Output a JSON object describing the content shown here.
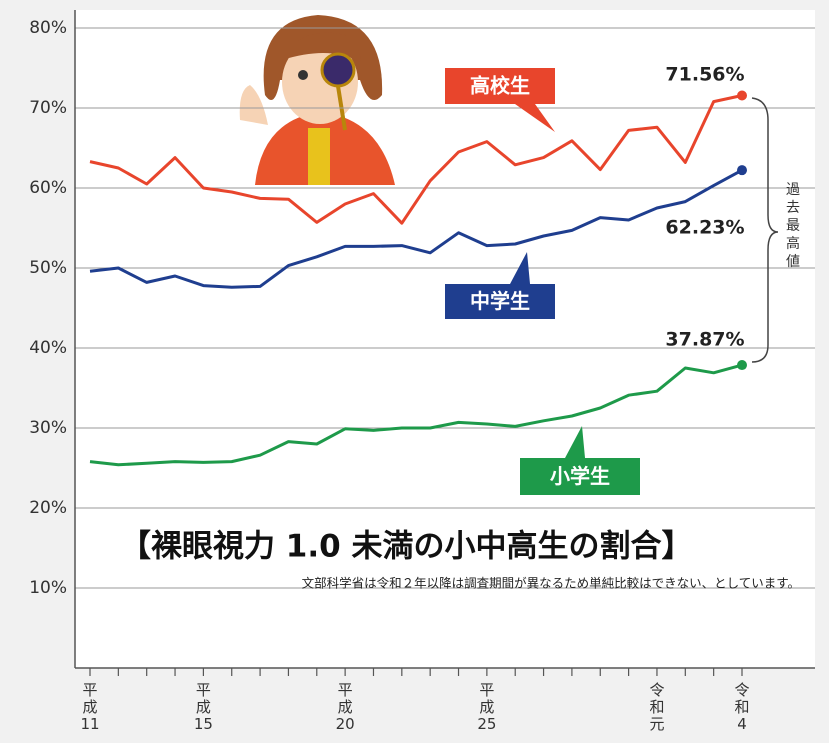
{
  "chart_data": {
    "type": "line",
    "title": "【裸眼視力 1.0 未満の小中高生の割合】",
    "note": "文部科学省は令和２年以降は調査期間が異なるため単純比較はできない、としています。",
    "annotation": "過去最高値",
    "categories": [
      "平成11",
      null,
      null,
      null,
      "平成15",
      null,
      null,
      null,
      null,
      "平成20",
      null,
      null,
      null,
      null,
      "平成25",
      null,
      null,
      null,
      null,
      null,
      "令和元",
      null,
      null,
      "令和4"
    ],
    "series": [
      {
        "name": "高校生",
        "color": "#e8452c",
        "values": [
          63.3,
          62.5,
          60.5,
          63.8,
          60.0,
          59.5,
          58.7,
          58.6,
          55.7,
          58.0,
          59.3,
          55.6,
          60.9,
          64.5,
          65.8,
          62.9,
          63.8,
          65.9,
          62.3,
          67.2,
          67.6,
          63.2,
          70.8,
          71.56
        ],
        "value_labels": [
          null,
          null,
          null,
          null,
          null,
          null,
          null,
          null,
          null,
          null,
          null,
          null,
          null,
          null,
          null,
          null,
          null,
          null,
          null,
          null,
          null,
          null,
          null,
          "71.56%"
        ]
      },
      {
        "name": "中学生",
        "color": "#1f3e8f",
        "values": [
          49.6,
          50.0,
          48.2,
          49.0,
          47.8,
          47.6,
          47.7,
          50.3,
          51.4,
          52.7,
          52.7,
          52.8,
          51.9,
          54.4,
          52.8,
          53.0,
          54.0,
          54.7,
          56.3,
          56.0,
          57.5,
          58.3,
          60.3,
          62.23
        ],
        "value_labels": [
          null,
          null,
          null,
          null,
          null,
          null,
          null,
          null,
          null,
          null,
          null,
          null,
          null,
          null,
          null,
          null,
          null,
          null,
          null,
          null,
          null,
          null,
          null,
          "62.23%"
        ]
      },
      {
        "name": "小学生",
        "color": "#1e9a4a",
        "values": [
          25.8,
          25.4,
          25.6,
          25.8,
          25.7,
          25.8,
          26.6,
          28.3,
          28.0,
          29.9,
          29.7,
          30.0,
          30.0,
          30.7,
          30.5,
          30.2,
          30.9,
          31.5,
          32.5,
          34.1,
          34.6,
          37.5,
          36.9,
          37.87
        ],
        "value_labels": [
          null,
          null,
          null,
          null,
          null,
          null,
          null,
          null,
          null,
          null,
          null,
          null,
          null,
          null,
          null,
          null,
          null,
          null,
          null,
          null,
          null,
          null,
          null,
          "37.87%"
        ]
      }
    ],
    "ylim": [
      0,
      80
    ],
    "yticks": [
      {
        "value": 10,
        "label": "10%"
      },
      {
        "value": 20,
        "label": "20%"
      },
      {
        "value": 30,
        "label": "30%"
      },
      {
        "value": 40,
        "label": "40%"
      },
      {
        "value": 50,
        "label": "50%"
      },
      {
        "value": 60,
        "label": "60%"
      },
      {
        "value": 70,
        "label": "70%"
      },
      {
        "value": 80,
        "label": "80%"
      }
    ],
    "grid": true
  }
}
